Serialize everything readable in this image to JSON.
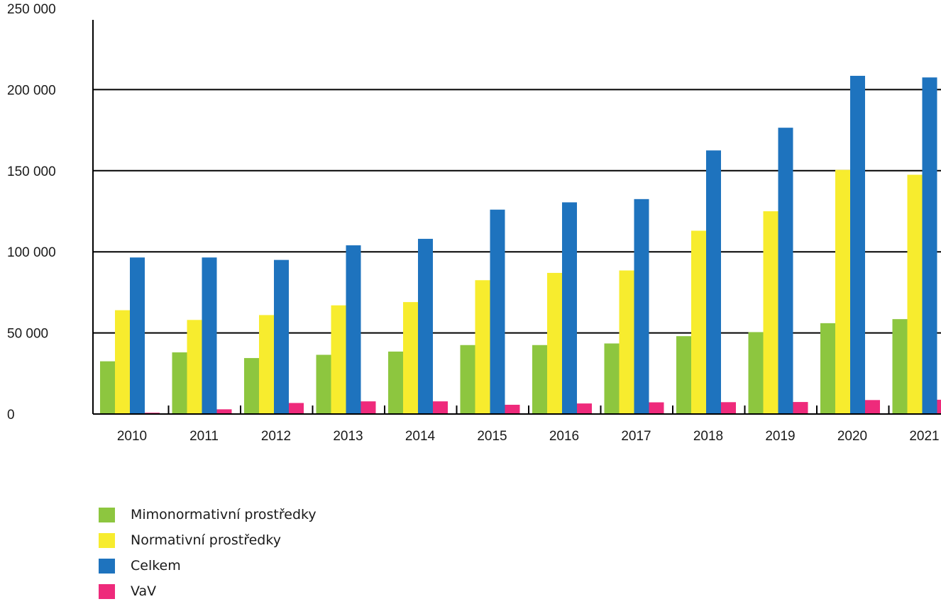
{
  "chart_data": {
    "type": "bar",
    "title": "",
    "xlabel": "",
    "ylabel": "",
    "categories": [
      "2010",
      "2011",
      "2012",
      "2013",
      "2014",
      "2015",
      "2016",
      "2017",
      "2018",
      "2019",
      "2020",
      "2021"
    ],
    "series": [
      {
        "name": "Mimonormativní prostředky",
        "color": "#8dc63f",
        "values": [
          32500,
          38000,
          34500,
          36500,
          38500,
          42500,
          42500,
          43500,
          48000,
          50500,
          56000,
          58500
        ]
      },
      {
        "name": "Normativní prostředky",
        "color": "#f7ec2e",
        "values": [
          64000,
          58000,
          61000,
          67000,
          69000,
          82500,
          87000,
          88500,
          113000,
          125000,
          150500,
          147500
        ]
      },
      {
        "name": "Celkem",
        "color": "#1e73be",
        "values": [
          96500,
          96500,
          95000,
          104000,
          108000,
          126000,
          130500,
          132500,
          162500,
          176500,
          208500,
          207500
        ]
      },
      {
        "name": "VaV",
        "color": "#ee2a7b",
        "values": [
          800,
          2900,
          6800,
          7800,
          7800,
          5700,
          6500,
          7200,
          7300,
          7400,
          8600,
          8800
        ]
      }
    ],
    "ylim": [
      0,
      250000
    ],
    "yticks": [
      0,
      50000,
      100000,
      150000,
      200000,
      250000
    ],
    "ytick_labels": [
      "0",
      "50 000",
      "100 000",
      "150 000",
      "200 000",
      "250 000"
    ],
    "grid": true,
    "legend_position": "bottom-left"
  }
}
